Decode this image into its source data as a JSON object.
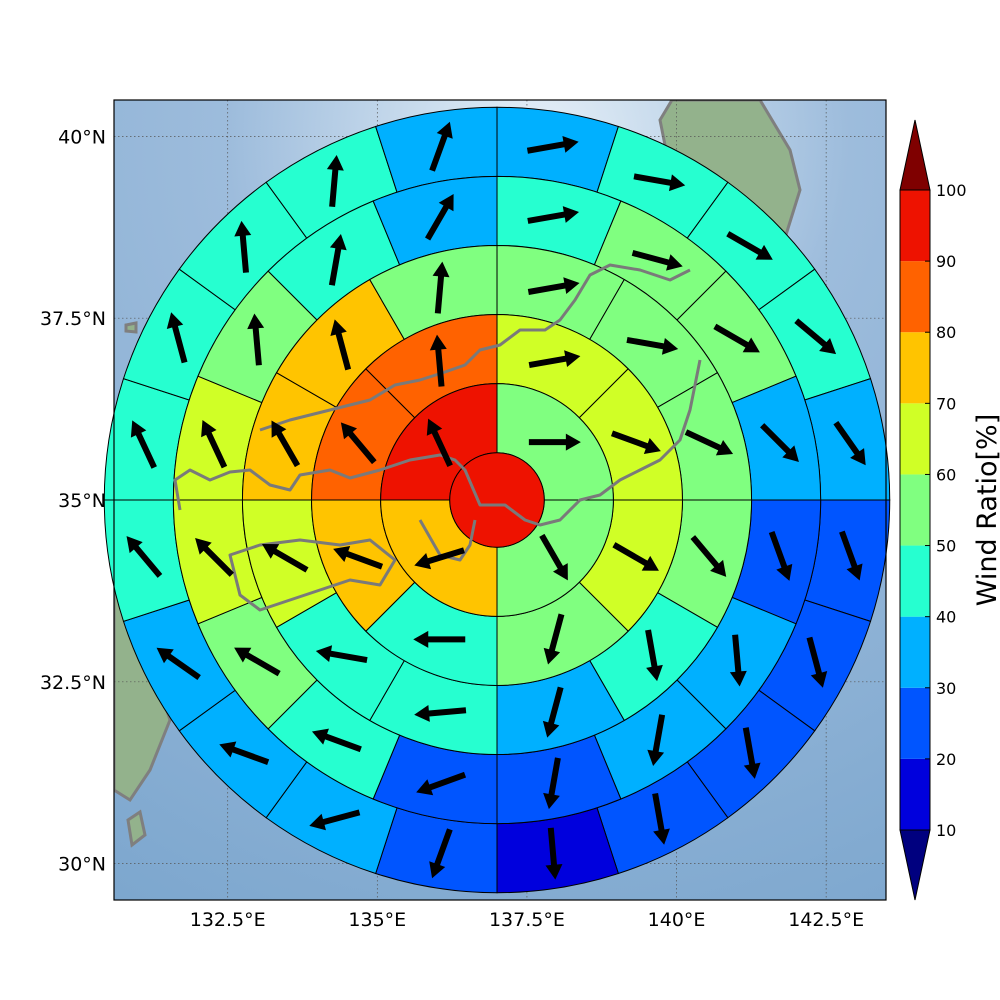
{
  "chart_data": {
    "type": "heatmap",
    "subtype": "polar-sector wind ratio map with direction arrows",
    "map": {
      "lon_range": [
        130.6,
        143.5
      ],
      "lat_range": [
        29.5,
        40.5
      ],
      "center": {
        "lon": 137.0,
        "lat": 35.0
      },
      "ring_radii_deg": [
        0.65,
        1.6,
        2.55,
        3.5,
        4.45,
        5.4
      ],
      "grid": true,
      "basemap": "shaded relief with gray coastlines"
    },
    "x_ticks": [
      132.5,
      135,
      137.5,
      140,
      142.5
    ],
    "x_tick_labels": [
      "132.5°E",
      "135°E",
      "137.5°E",
      "140°E",
      "142.5°E"
    ],
    "y_ticks": [
      30,
      32.5,
      35,
      37.5,
      40
    ],
    "y_tick_labels": [
      "30°N",
      "32.5°N",
      "35°N",
      "37.5°N",
      "40°N"
    ],
    "center_value": 95,
    "rings": [
      {
        "sectors": 4,
        "values": [
          55,
          55,
          75,
          95
        ],
        "arrows_deg": [
          90,
          150,
          253,
          335
        ]
      },
      {
        "sectors": 8,
        "values": [
          65,
          65,
          65,
          55,
          45,
          75,
          85,
          85
        ],
        "arrows_deg": [
          80,
          110,
          120,
          195,
          270,
          290,
          320,
          355
        ]
      },
      {
        "sectors": 12,
        "values": [
          55,
          55,
          55,
          55,
          45,
          35,
          45,
          45,
          65,
          75,
          75,
          55
        ],
        "arrows_deg": [
          80,
          100,
          115,
          140,
          170,
          195,
          265,
          280,
          300,
          330,
          345,
          5
        ]
      },
      {
        "sectors": 16,
        "values": [
          45,
          55,
          55,
          35,
          25,
          35,
          35,
          25,
          25,
          45,
          55,
          65,
          65,
          55,
          45,
          35
        ],
        "arrows_deg": [
          80,
          105,
          120,
          135,
          160,
          175,
          190,
          190,
          250,
          290,
          300,
          315,
          335,
          355,
          10,
          30
        ]
      },
      {
        "sectors": 20,
        "values": [
          35,
          45,
          45,
          45,
          35,
          25,
          25,
          25,
          25,
          15,
          25,
          35,
          35,
          35,
          45,
          45,
          45,
          45,
          45,
          35
        ],
        "arrows_deg": [
          80,
          100,
          120,
          130,
          145,
          160,
          165,
          170,
          170,
          175,
          200,
          255,
          290,
          305,
          320,
          335,
          345,
          355,
          5,
          20
        ]
      }
    ],
    "colorbar": {
      "label": "Wind Ratio[%]",
      "boundaries": [
        10,
        20,
        30,
        40,
        50,
        60,
        70,
        80,
        90,
        100
      ],
      "tick_labels": [
        "10",
        "20",
        "30",
        "40",
        "50",
        "60",
        "70",
        "80",
        "90",
        "100"
      ],
      "colors": [
        "#0000dd",
        "#0055ff",
        "#00b0ff",
        "#26ffd0",
        "#80ff80",
        "#d0ff26",
        "#ffc400",
        "#ff6200",
        "#ee1200"
      ],
      "under_color": "#00007f",
      "over_color": "#7f0000"
    },
    "colors": {
      "ocean_center": "#cfe2f0",
      "ocean_edge": "#7ea8cf",
      "land": "#8fb08a",
      "coastline": "#808080",
      "arrow": "#000000"
    }
  }
}
